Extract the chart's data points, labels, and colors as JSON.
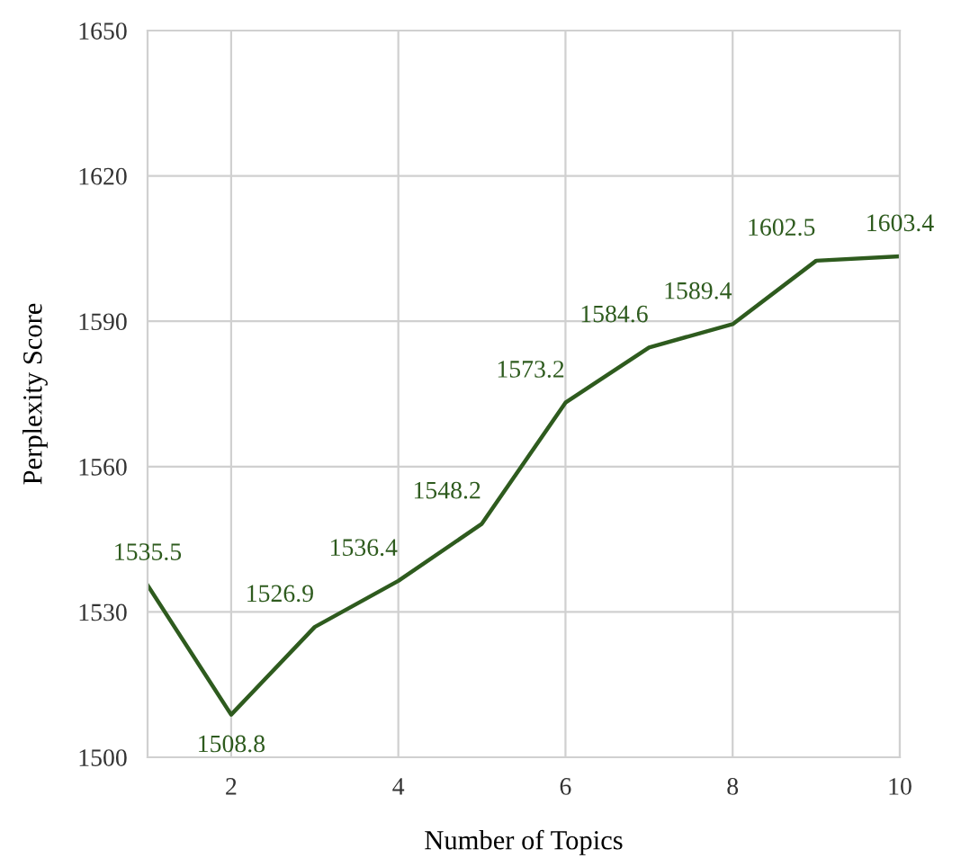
{
  "chart_data": {
    "type": "line",
    "xlabel": "Number of Topics",
    "ylabel": "Perplexity Score",
    "x": [
      1,
      2,
      3,
      4,
      5,
      6,
      7,
      8,
      9,
      10
    ],
    "series": [
      {
        "color": "#2e5b1e",
        "values": [
          1535.5,
          1508.8,
          1526.9,
          1536.4,
          1548.2,
          1573.2,
          1584.6,
          1589.4,
          1602.5,
          1603.4
        ]
      }
    ],
    "xlim": [
      1,
      10
    ],
    "xticks": [
      2,
      4,
      6,
      8,
      10
    ],
    "ylim": [
      1500,
      1650
    ],
    "yticks": [
      1500,
      1530,
      1560,
      1590,
      1620,
      1650
    ],
    "grid": true,
    "data_labels": true,
    "marker": "none",
    "line_style": "solid",
    "legend": false
  }
}
